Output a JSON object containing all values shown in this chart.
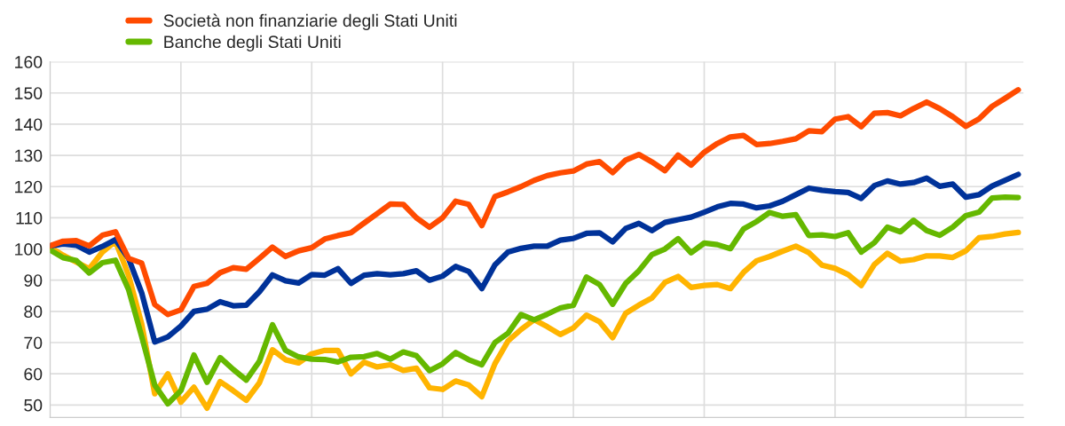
{
  "chart_data": {
    "type": "line",
    "categories": [
      null,
      null,
      null,
      null,
      null,
      null,
      null,
      null,
      null,
      null,
      null,
      null,
      null,
      null,
      null,
      null,
      null,
      null,
      null,
      null,
      null,
      null,
      null,
      null,
      null,
      null,
      null,
      null,
      null,
      null,
      null,
      null,
      null,
      null,
      null,
      null,
      null,
      null,
      null,
      null,
      null,
      null,
      null,
      null,
      null,
      null,
      null,
      null,
      null,
      null,
      null,
      null,
      null,
      null,
      null,
      null,
      null,
      null,
      null,
      null,
      null,
      null,
      null,
      null,
      null,
      null,
      null,
      null,
      null,
      null,
      null,
      null,
      null,
      null,
      null
    ],
    "ylim": [
      46,
      160
    ],
    "yticks": [
      50,
      60,
      70,
      80,
      90,
      100,
      110,
      120,
      130,
      140,
      150,
      160
    ],
    "tick_labels": "y",
    "grid": true,
    "legend": "top left",
    "line_style": "solid",
    "marker": "none",
    "series": [
      {
        "name": "Società non finanziarie degli Stati Uniti",
        "color": "#ff4b00",
        "values": [
          101,
          102.5,
          102.7,
          101,
          104.4,
          105.5,
          97,
          95.5,
          82.2,
          79,
          80.5,
          88,
          89,
          92.4,
          94,
          93.5,
          97,
          100.6,
          97.6,
          99.4,
          100.4,
          103.2,
          104.3,
          105.2,
          108.3,
          111.3,
          114.4,
          114.3,
          110,
          107,
          110,
          115.3,
          114.3,
          107.5,
          116.8,
          118.3,
          120,
          122,
          123.5,
          124.4,
          125,
          127.2,
          128,
          124.5,
          128.5,
          130.3,
          127.9,
          125.1,
          130.1,
          126.9,
          131,
          133.8,
          135.9,
          136.4,
          133.5,
          133.8,
          134.5,
          135.3,
          137.9,
          137.6,
          141.6,
          142.4,
          139.2,
          143.5,
          143.7,
          142.7,
          145,
          147.1,
          145,
          142.4,
          139.3,
          141.7,
          145.7,
          148.3,
          151
        ]
      },
      {
        "name": "Banche degli Stati Uniti",
        "color": "#65b800",
        "values": [
          99.7,
          97.2,
          96.3,
          92.3,
          95.6,
          96.4,
          87,
          72,
          56.4,
          50.4,
          54.6,
          66,
          57.3,
          65.2,
          61.4,
          58,
          64,
          75.7,
          67.5,
          65.4,
          64.7,
          64.6,
          63.8,
          65.3,
          65.5,
          66.5,
          64.7,
          67,
          65.8,
          61,
          63.2,
          66.8,
          64.5,
          62.9,
          70,
          73,
          79,
          77.3,
          79.1,
          81.1,
          82,
          91,
          88.6,
          82.3,
          89,
          93,
          98.2,
          100,
          103.3,
          98.8,
          101.9,
          101.4,
          100.1,
          106.4,
          108.8,
          111.7,
          110.5,
          111,
          104.3,
          104.5,
          104,
          105.2,
          99,
          102,
          107,
          105.5,
          109.2,
          105.9,
          104.4,
          107,
          110.7,
          111.8,
          116.3,
          116.6,
          116.5
        ]
      },
      {
        "color": "#003299",
        "values": [
          101,
          101.6,
          101.2,
          99,
          100.8,
          103,
          97,
          86,
          70.2,
          71.8,
          75.3,
          80,
          80.7,
          83.1,
          81.8,
          82,
          86.3,
          91.7,
          89.8,
          89.1,
          91.8,
          91.6,
          93.7,
          89,
          91.6,
          92.1,
          91.7,
          92.1,
          93,
          90,
          91.3,
          94.4,
          92.8,
          87.3,
          94.9,
          99,
          100.2,
          100.9,
          100.9,
          102.8,
          103.4,
          105,
          105.2,
          102.3,
          106.6,
          108.2,
          105.9,
          108.5,
          109.4,
          110.2,
          111.8,
          113.5,
          114.6,
          114.4,
          113.2,
          113.8,
          115.3,
          117.4,
          119.5,
          118.8,
          118.4,
          118.1,
          116.2,
          120.3,
          121.8,
          120.8,
          121.3,
          122.7,
          120.1,
          120.8,
          116.6,
          117.4,
          120.2,
          122,
          123.9
        ]
      },
      {
        "color": "#ffb400",
        "values": [
          100.6,
          98,
          95.8,
          93.7,
          99,
          102.5,
          91.6,
          76,
          53.6,
          60,
          50.9,
          55.7,
          49,
          57.5,
          54.6,
          51.5,
          57.1,
          67.7,
          64.5,
          63.5,
          66.4,
          67.5,
          67.5,
          60,
          63.7,
          62.2,
          62.9,
          61.1,
          61.8,
          55.5,
          55,
          57.7,
          56.4,
          52.7,
          63.2,
          70.5,
          74.2,
          77.3,
          75.1,
          72.6,
          74.7,
          78.8,
          76.7,
          71.6,
          79.4,
          82,
          84.3,
          89.3,
          91.2,
          87.7,
          88.3,
          88.6,
          87.3,
          92.5,
          96.2,
          97.6,
          99.3,
          100.9,
          98.8,
          94.8,
          93.8,
          91.8,
          88.3,
          95,
          98.6,
          96.1,
          96.6,
          97.8,
          97.8,
          97.3,
          99.4,
          103.6,
          104,
          104.8,
          105.3
        ]
      }
    ]
  }
}
